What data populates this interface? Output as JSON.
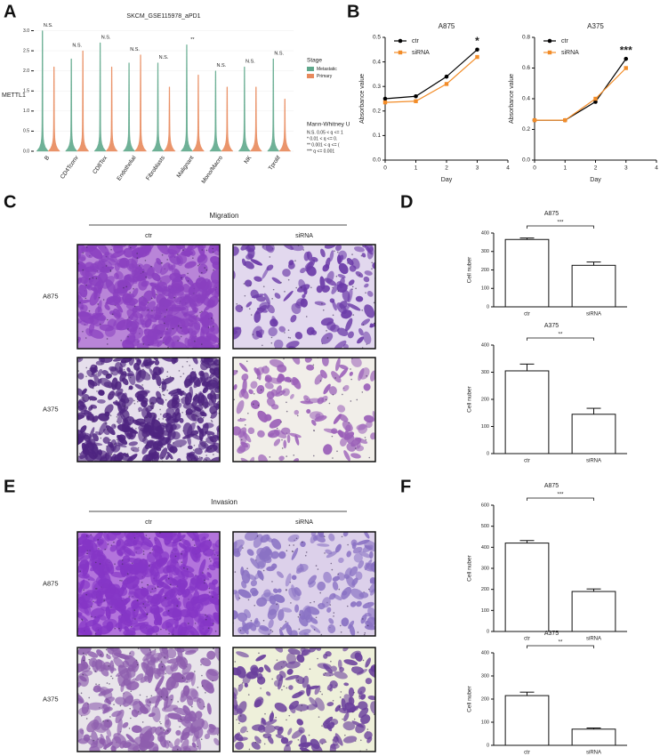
{
  "chart_data": [
    {
      "type": "violin",
      "panel": "A",
      "title": "SKCM_GSE115978_aPD1",
      "y_label": "METTL1",
      "categories": [
        "B",
        "CD4Tconv",
        "CD8Tex",
        "Endothelial",
        "Fibroblasts",
        "Malignant",
        "Mono/Macro",
        "NK",
        "Tprolif"
      ],
      "series": [
        {
          "name": "Metastatic",
          "color": "#5fa88c",
          "values": [
            3.0,
            2.3,
            2.7,
            2.2,
            2.2,
            2.65,
            2.0,
            2.1,
            2.3
          ]
        },
        {
          "name": "Primary",
          "color": "#e8895c",
          "values": [
            2.1,
            2.5,
            2.1,
            2.4,
            1.6,
            1.9,
            1.6,
            1.6,
            1.3
          ]
        }
      ],
      "significance": [
        "N.S.",
        "N.S.",
        "N.S.",
        "N.S.",
        "N.S.",
        "**",
        "N.S.",
        "N.S.",
        "N.S."
      ],
      "ylim": [
        0,
        3.1
      ],
      "yticks": [
        {
          "value": 0,
          "label": "0.0"
        },
        0.5,
        {
          "value": 1,
          "label": "1.0"
        },
        1.5,
        {
          "value": 2,
          "label": "2.0"
        },
        2.5,
        {
          "value": 3,
          "label": "3.0"
        }
      ],
      "legend_title": "Stage",
      "test_legend": {
        "title": "Mann-Whitney U",
        "items": [
          "N.S. 0.05 < q <= 1",
          "* 0.01 < q <= 0.",
          "** 0.001 < q <= (",
          "*** q <= 0.001"
        ]
      }
    },
    {
      "type": "line",
      "panel": "B",
      "title": "A875",
      "x_label": "Day",
      "y_label": "Absorbance value",
      "x": [
        0,
        1,
        2,
        3
      ],
      "xlim": [
        0,
        4
      ],
      "xticks": [
        0,
        1,
        2,
        3,
        4
      ],
      "ylim": [
        0,
        0.5
      ],
      "yticks": [
        {
          "value": 0,
          "label": "0.0"
        },
        0.1,
        0.2,
        0.3,
        0.4,
        0.5
      ],
      "series": [
        {
          "name": "ctr",
          "color": "#000000",
          "marker": "circle",
          "values": [
            0.25,
            0.26,
            0.34,
            0.45
          ]
        },
        {
          "name": "siRNA",
          "color": "#f28c28",
          "marker": "square",
          "values": [
            0.235,
            0.24,
            0.31,
            0.42
          ]
        }
      ],
      "legend": "upper left",
      "annotations": [
        {
          "x": 3,
          "text": "*"
        }
      ]
    },
    {
      "type": "line",
      "title": "A375",
      "x_label": "Day",
      "y_label": "Absorbance value",
      "x": [
        0,
        1,
        2,
        3
      ],
      "xlim": [
        0,
        4
      ],
      "xticks": [
        0,
        1,
        2,
        3,
        4
      ],
      "ylim": [
        0,
        0.8
      ],
      "yticks": [
        {
          "value": 0,
          "label": "0.0"
        },
        0.2,
        0.4,
        0.6,
        0.8
      ],
      "series": [
        {
          "name": "ctr",
          "color": "#000000",
          "marker": "circle",
          "values": [
            0.26,
            0.26,
            0.38,
            0.66
          ]
        },
        {
          "name": "siRNA",
          "color": "#f28c28",
          "marker": "square",
          "values": [
            0.26,
            0.26,
            0.4,
            0.6
          ]
        }
      ],
      "legend": "upper left",
      "annotations": [
        {
          "x": 3,
          "text": "***"
        }
      ]
    },
    {
      "type": "bar",
      "panel": "D",
      "title": "A875",
      "y_label": "Cell nuber",
      "categories": [
        "ctr",
        "siRNA"
      ],
      "values": [
        365,
        225
      ],
      "errors": [
        8,
        18
      ],
      "color": "#ffffff",
      "significance": "***",
      "ylim": [
        0,
        400
      ],
      "yticks": [
        0,
        100,
        200,
        300,
        400
      ]
    },
    {
      "type": "bar",
      "title": "A375",
      "y_label": "Cell nuber",
      "categories": [
        "ctr",
        "siRNA"
      ],
      "values": [
        305,
        145
      ],
      "errors": [
        25,
        22
      ],
      "color": "#ffffff",
      "significance": "**",
      "ylim": [
        0,
        400
      ],
      "yticks": [
        0,
        100,
        200,
        300,
        400
      ]
    },
    {
      "type": "bar",
      "panel": "F",
      "title": "A875",
      "y_label": "Cell nuber",
      "categories": [
        "ctr",
        "siRNA"
      ],
      "values": [
        420,
        190
      ],
      "errors": [
        12,
        12
      ],
      "color": "#ffffff",
      "significance": "***",
      "ylim": [
        0,
        600
      ],
      "yticks": [
        0,
        100,
        200,
        300,
        400,
        500,
        600
      ]
    },
    {
      "type": "bar",
      "title": "A375",
      "y_label": "Cell nuber",
      "categories": [
        "ctr",
        "siRNA"
      ],
      "values": [
        215,
        70
      ],
      "errors": [
        15,
        5
      ],
      "color": "#ffffff",
      "significance": "**",
      "ylim": [
        0,
        400
      ],
      "yticks": [
        0,
        100,
        200,
        300,
        400
      ]
    }
  ],
  "image_panels": [
    {
      "panel": "C",
      "title": "Migration",
      "columns": [
        "ctr",
        "siRNA"
      ],
      "rows": [
        "A875",
        "A375"
      ]
    },
    {
      "panel": "E",
      "title": "Invasion",
      "columns": [
        "ctr",
        "siRNA"
      ],
      "rows": [
        "A875",
        "A375"
      ]
    }
  ]
}
